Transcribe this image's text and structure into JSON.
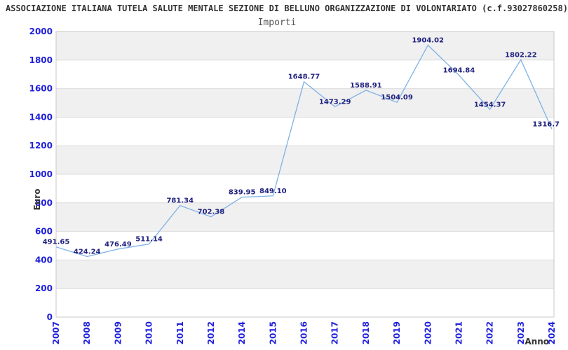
{
  "header": {
    "title": "ASSOCIAZIONE ITALIANA TUTELA SALUTE MENTALE SEZIONE DI BELLUNO ORGANIZZAZIONE DI VOLONTARIATO (c.f.93027860258)",
    "subtitle": "Importi"
  },
  "chart_data": {
    "type": "line",
    "title": "Importi",
    "xlabel": "Anno",
    "ylabel": "Euro",
    "ylim": [
      0,
      2000
    ],
    "ytick_step": 200,
    "ytick_labels": [
      "0",
      "200",
      "400",
      "600",
      "800",
      "1000",
      "1200",
      "1400",
      "1600",
      "1800",
      "2000"
    ],
    "grid": "horizontal-bands-alternating",
    "legend": "none",
    "categories": [
      "2007",
      "2008",
      "2009",
      "2010",
      "2011",
      "2012",
      "2014",
      "2015",
      "2016",
      "2017",
      "2018",
      "2019",
      "2020",
      "2021",
      "2022",
      "2023",
      "2024"
    ],
    "values": [
      491.65,
      424.24,
      476.49,
      511.14,
      781.34,
      702.38,
      839.95,
      849.1,
      1648.77,
      1473.29,
      1588.91,
      1504.09,
      1904.02,
      1694.84,
      1454.37,
      1802.22,
      1316.7
    ],
    "point_labels": [
      "491.65",
      "424.24",
      "476.49",
      "511.14",
      "781.34",
      "702.38",
      "839.95",
      "849.10",
      "1648.77",
      "1473.29",
      "1588.91",
      "1504.09",
      "1904.02",
      "1694.84",
      "1454.37",
      "1802.22",
      "1316.7"
    ],
    "colors": {
      "line": "#7fb2e5",
      "band": "#f0f0f0",
      "gridline": "#dcdcdc",
      "border": "#c9c9c9",
      "axis_tick_label": "#2020dd",
      "point_label": "#202080",
      "axis_title": "#333333",
      "title": "#333333",
      "subtitle": "#555555"
    }
  }
}
